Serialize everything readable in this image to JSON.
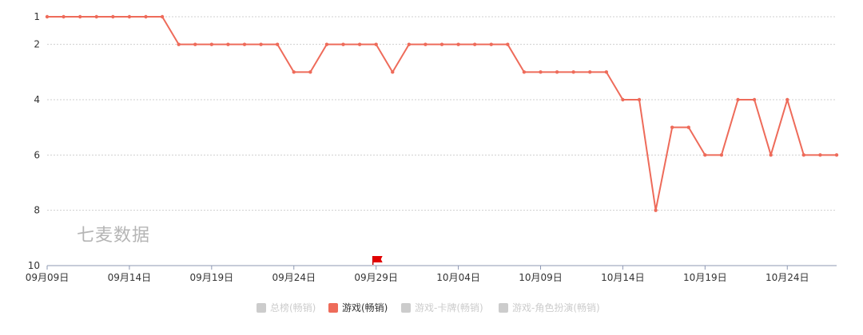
{
  "watermark": "七麦数据",
  "chart_data": {
    "type": "line",
    "y_inverted": true,
    "ylim": [
      1,
      10
    ],
    "yticks": [
      1,
      2,
      4,
      6,
      8,
      10
    ],
    "x_tick_labels": [
      "09月09日",
      "09月14日",
      "09月19日",
      "09月24日",
      "09月29日",
      "10月04日",
      "10月09日",
      "10月14日",
      "10月19日",
      "10月24日"
    ],
    "x_tick_indices": [
      0,
      5,
      10,
      15,
      20,
      25,
      30,
      35,
      40,
      45
    ],
    "marker": {
      "index": 20,
      "icon": "red-flag-icon"
    },
    "legend": [
      {
        "name": "总榜(畅销)",
        "color": "#cccccc",
        "active": false
      },
      {
        "name": "游戏(畅销)",
        "color": "#ee6b5a",
        "active": true
      },
      {
        "name": "游戏-卡牌(畅销)",
        "color": "#cccccc",
        "active": false
      },
      {
        "name": "游戏-角色扮演(畅销)",
        "color": "#cccccc",
        "active": false
      }
    ],
    "series": [
      {
        "name": "游戏(畅销)",
        "color": "#ee6b5a",
        "values": [
          1,
          1,
          1,
          1,
          1,
          1,
          1,
          1,
          2,
          2,
          2,
          2,
          2,
          2,
          2,
          3,
          3,
          2,
          2,
          2,
          2,
          3,
          2,
          2,
          2,
          2,
          2,
          2,
          2,
          3,
          3,
          3,
          3,
          3,
          3,
          4,
          4,
          8,
          5,
          5,
          6,
          6,
          4,
          4,
          6,
          4,
          6,
          6,
          6
        ]
      }
    ]
  }
}
